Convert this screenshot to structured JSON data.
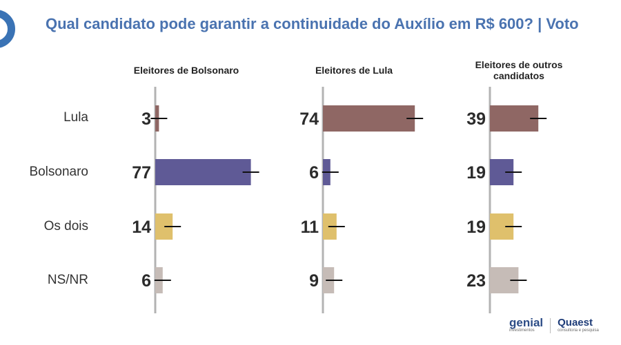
{
  "chart_data": {
    "type": "bar",
    "orientation": "horizontal",
    "title": "Qual candidato pode garantir a continuidade do Auxílio em R$ 600? | Voto",
    "categories": [
      "Lula",
      "Bolsonaro",
      "Os dois",
      "NS/NR"
    ],
    "category_colors": [
      "#8f6764",
      "#5f5a96",
      "#dfc06c",
      "#c6bcb7"
    ],
    "xlim": [
      0,
      100
    ],
    "panels": [
      {
        "label": "Eleitores de Bolsonaro",
        "values": [
          3,
          77,
          14,
          6
        ]
      },
      {
        "label": "Eleitores de Lula",
        "values": [
          74,
          6,
          11,
          9
        ]
      },
      {
        "label": "Eleitores de outros candidatos",
        "values": [
          39,
          19,
          19,
          23
        ]
      }
    ]
  },
  "header": {
    "title": "Qual candidato pode garantir a continuidade do Auxílio em R$ 600? | Voto"
  },
  "panel_headers": {
    "p0": "Eleitores de Bolsonaro",
    "p1": "Eleitores de Lula",
    "p2": "Eleitores de outros candidatos"
  },
  "row_labels": {
    "r0": "Lula",
    "r1": "Bolsonaro",
    "r2": "Os dois",
    "r3": "NS/NR"
  },
  "footer": {
    "logo_primary": "genial",
    "logo_primary_sub": "investimentos",
    "logo_secondary": "Quaest",
    "logo_secondary_sub": "consultoria e pesquisa"
  }
}
